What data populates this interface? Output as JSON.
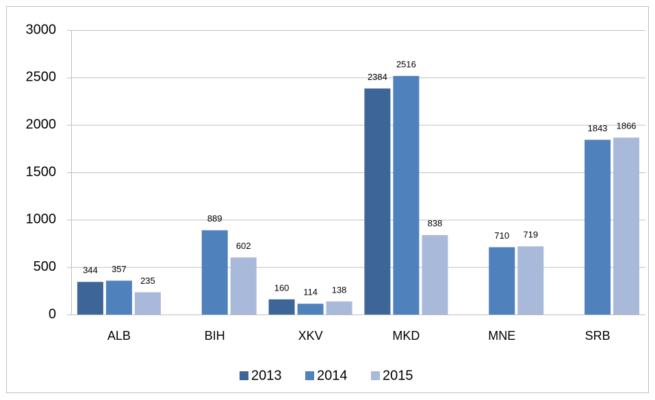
{
  "chart_data": {
    "type": "bar",
    "categories": [
      "ALB",
      "BIH",
      "XKV",
      "MKD",
      "MNE",
      "SRB"
    ],
    "series": [
      {
        "name": "2013",
        "color": "#3d6598",
        "values": [
          344,
          null,
          160,
          2384,
          null,
          null
        ]
      },
      {
        "name": "2014",
        "color": "#4f81bd",
        "values": [
          357,
          889,
          114,
          2516,
          710,
          1843
        ]
      },
      {
        "name": "2015",
        "color": "#a9b9d9",
        "values": [
          235,
          602,
          138,
          838,
          719,
          1866
        ]
      }
    ],
    "ylim": [
      0,
      3000
    ],
    "yticks": [
      0,
      500,
      1000,
      1500,
      2000,
      2500,
      3000
    ],
    "grid": true,
    "legend": "bottom"
  }
}
